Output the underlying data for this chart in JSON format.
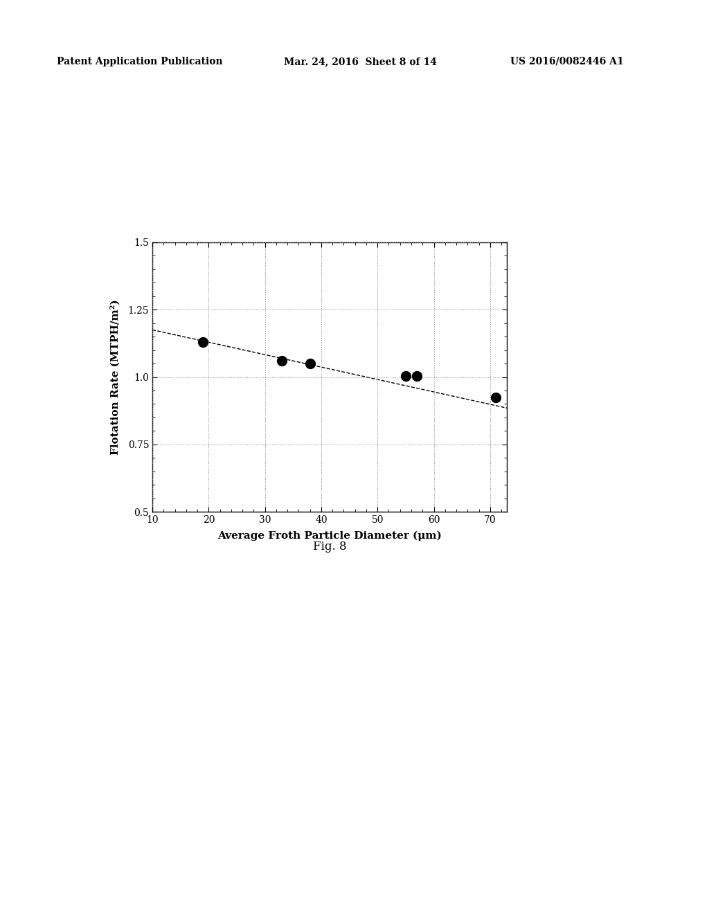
{
  "scatter_x": [
    19,
    33,
    38,
    55,
    57,
    71
  ],
  "scatter_y": [
    1.13,
    1.06,
    1.05,
    1.005,
    1.005,
    0.925
  ],
  "trendline_x": [
    10,
    73
  ],
  "trendline_y": [
    1.175,
    0.885
  ],
  "xlabel": "Average Froth Particle Diameter (μm)",
  "ylabel": "Flotation Rate (MTPH/m²)",
  "fig_label": "Fig. 8",
  "header_left": "Patent Application Publication",
  "header_center": "Mar. 24, 2016  Sheet 8 of 14",
  "header_right": "US 2016/0082446 A1",
  "xlim": [
    10,
    73
  ],
  "ylim": [
    0.5,
    1.5
  ],
  "xticks": [
    10,
    20,
    30,
    40,
    50,
    60,
    70
  ],
  "yticks": [
    0.5,
    0.75,
    1.0,
    1.25,
    1.5
  ],
  "grid_color": "#888888",
  "background_color": "#ffffff",
  "scatter_color": "#000000",
  "scatter_size": 100,
  "trendline_color": "#000000"
}
